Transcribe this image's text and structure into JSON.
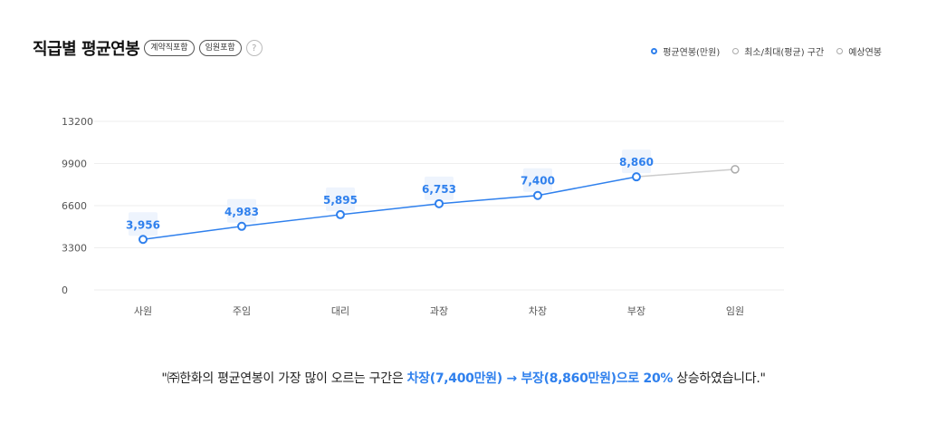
{
  "header": {
    "title": "직급별 평균연봉",
    "chip_contract": "계약직포함",
    "chip_exec": "임원포함",
    "help": "?"
  },
  "legend": {
    "avg": "평균연봉(만원)",
    "range": "최소/최대(평균) 구간",
    "expected": "예상연봉"
  },
  "colors": {
    "accent": "#2f80ed",
    "expected": "#cccccc",
    "grid": "#eeeeee"
  },
  "chart_data": {
    "type": "line",
    "categories": [
      "사원",
      "주임",
      "대리",
      "과장",
      "차장",
      "부장",
      "임원"
    ],
    "series": [
      {
        "name": "평균연봉(만원)",
        "values": [
          3956,
          4983,
          5895,
          6753,
          7400,
          8860,
          null
        ]
      },
      {
        "name": "예상연봉",
        "values": [
          null,
          null,
          null,
          null,
          null,
          8860,
          9450
        ]
      }
    ],
    "data_labels": [
      "3,956",
      "4,983",
      "5,895",
      "6,753",
      "7,400",
      "8,860"
    ],
    "y_ticks": [
      "0",
      "3300",
      "6600",
      "9900",
      "13200"
    ],
    "ylim": [
      0,
      13200
    ],
    "grid": true,
    "legend_position": "top-right"
  },
  "summary": {
    "prefix": "\"㈜한화의 평균연봉이 가장 많이 오르는 구간은 ",
    "highlight_from": "차장(7,400만원)",
    "arrow": " → ",
    "highlight_to": "부장(8,860만원)으로 20%",
    "suffix": " 상승하였습니다.\""
  }
}
